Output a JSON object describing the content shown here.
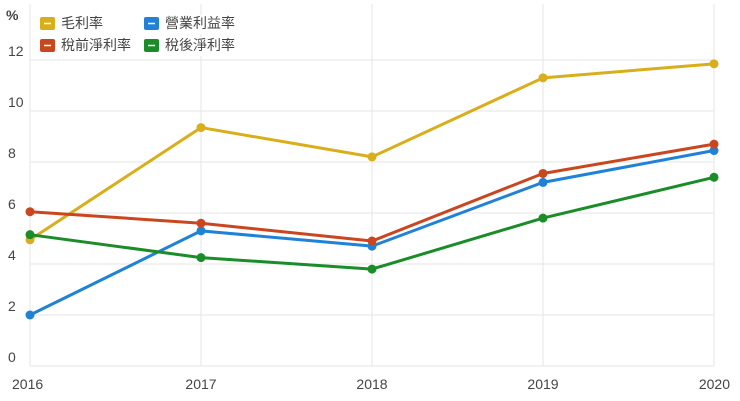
{
  "chart_data": {
    "type": "line",
    "title": "",
    "xlabel": "",
    "ylabel": "%",
    "categories": [
      "2016",
      "2017",
      "2018",
      "2019",
      "2020"
    ],
    "ylim": [
      0,
      14
    ],
    "yticks": [
      0,
      2,
      4,
      6,
      8,
      10,
      12
    ],
    "grid": true,
    "legend_position": "top-left",
    "series": [
      {
        "name": "毛利率",
        "color": "#d9ae1a",
        "values": [
          4.95,
          9.35,
          8.2,
          11.3,
          11.85
        ]
      },
      {
        "name": "營業利益率",
        "color": "#1f82d6",
        "values": [
          2.0,
          5.3,
          4.7,
          7.2,
          8.45
        ]
      },
      {
        "name": "稅前淨利率",
        "color": "#c9461f",
        "values": [
          6.05,
          5.6,
          4.9,
          7.55,
          8.7
        ]
      },
      {
        "name": "稅後淨利率",
        "color": "#1a8c28",
        "values": [
          5.15,
          4.25,
          3.8,
          5.8,
          7.4
        ]
      }
    ]
  }
}
